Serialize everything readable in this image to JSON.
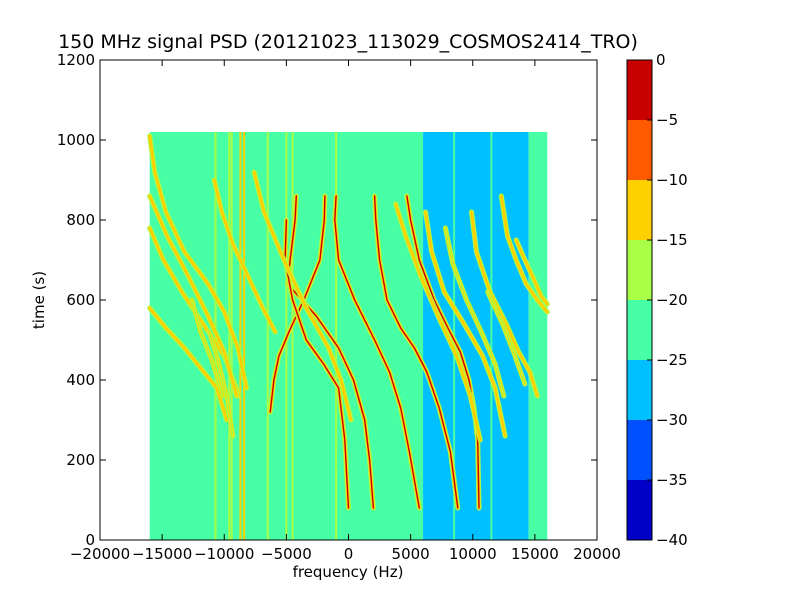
{
  "chart_data": {
    "type": "heatmap",
    "title": "150 MHz signal PSD (20121023_113029_COSMOS2414_TRO)",
    "xlabel": "frequency (Hz)",
    "ylabel": "time (s)",
    "xlim": [
      -20000,
      20000
    ],
    "ylim": [
      0,
      1200
    ],
    "xticks": [
      -20000,
      -15000,
      -10000,
      -5000,
      0,
      5000,
      10000,
      15000,
      20000
    ],
    "yticks": [
      0,
      200,
      400,
      600,
      800,
      1000,
      1200
    ],
    "data_extent": {
      "x": [
        -16000,
        16000
      ],
      "y": [
        0,
        1020
      ]
    },
    "colorbar": {
      "range": [
        -40,
        0
      ],
      "ticks": [
        0,
        -5,
        -10,
        -15,
        -20,
        -25,
        -30,
        -35,
        -40
      ],
      "levels": [
        {
          "from": -40,
          "to": -35,
          "color": "#0000c8"
        },
        {
          "from": -35,
          "to": -30,
          "color": "#0050ff"
        },
        {
          "from": -30,
          "to": -25,
          "color": "#00c0ff"
        },
        {
          "from": -25,
          "to": -20,
          "color": "#47ffa5"
        },
        {
          "from": -20,
          "to": -15,
          "color": "#a8ff45"
        },
        {
          "from": -15,
          "to": -10,
          "color": "#ffd000"
        },
        {
          "from": -10,
          "to": -5,
          "color": "#ff5a00"
        },
        {
          "from": -5,
          "to": 0,
          "color": "#c80000"
        }
      ]
    },
    "background_regions": [
      {
        "x": [
          -16000,
          -6500
        ],
        "level": -25,
        "color": "#47ffa5"
      },
      {
        "x": [
          -6500,
          6000
        ],
        "level": -25,
        "color": "#47ffa5"
      },
      {
        "x": [
          6000,
          14500
        ],
        "level": -30,
        "color": "#00c0ff"
      },
      {
        "x": [
          14500,
          16000
        ],
        "level": -25,
        "color": "#47ffa5"
      }
    ],
    "vertical_lines": [
      {
        "x": -10700,
        "level": -20
      },
      {
        "x": -9600,
        "level": -20
      },
      {
        "x": -9400,
        "level": -20
      },
      {
        "x": -8700,
        "level": -15
      },
      {
        "x": -8400,
        "level": -15
      },
      {
        "x": -6500,
        "level": -20
      },
      {
        "x": -5000,
        "level": -20
      },
      {
        "x": -4500,
        "level": -20
      },
      {
        "x": -1000,
        "level": -20
      },
      {
        "x": 3200,
        "level": -25
      },
      {
        "x": 8500,
        "level": -25
      },
      {
        "x": 11500,
        "level": -25
      }
    ],
    "series": [
      {
        "peak_level": -5,
        "points": [
          [
            -1900,
            860
          ],
          [
            -1950,
            800
          ],
          [
            -2300,
            700
          ],
          [
            -3600,
            600
          ],
          [
            -4800,
            520
          ],
          [
            -5600,
            460
          ],
          [
            -6000,
            400
          ],
          [
            -6300,
            320
          ]
        ]
      },
      {
        "peak_level": -5,
        "points": [
          [
            -4200,
            860
          ],
          [
            -4300,
            800
          ],
          [
            -4700,
            700
          ],
          [
            -4900,
            640
          ],
          [
            -2600,
            560
          ],
          [
            -800,
            480
          ],
          [
            400,
            400
          ],
          [
            1300,
            300
          ],
          [
            1700,
            200
          ],
          [
            2000,
            80
          ]
        ]
      },
      {
        "peak_level": -5,
        "points": [
          [
            -1000,
            860
          ],
          [
            -1100,
            800
          ],
          [
            -800,
            700
          ],
          [
            500,
            600
          ],
          [
            2100,
            500
          ],
          [
            3300,
            420
          ],
          [
            4200,
            330
          ],
          [
            4900,
            220
          ],
          [
            5700,
            80
          ]
        ]
      },
      {
        "peak_level": -5,
        "points": [
          [
            -5000,
            800
          ],
          [
            -5100,
            700
          ],
          [
            -4500,
            600
          ],
          [
            -3400,
            500
          ],
          [
            -2000,
            440
          ],
          [
            -800,
            380
          ],
          [
            -300,
            250
          ],
          [
            0,
            80
          ]
        ]
      },
      {
        "peak_level": -5,
        "points": [
          [
            2100,
            860
          ],
          [
            2200,
            800
          ],
          [
            2500,
            700
          ],
          [
            3100,
            600
          ],
          [
            4200,
            530
          ],
          [
            5300,
            480
          ],
          [
            6300,
            420
          ],
          [
            7300,
            330
          ],
          [
            8200,
            220
          ],
          [
            8800,
            80
          ]
        ]
      },
      {
        "peak_level": -5,
        "points": [
          [
            4700,
            860
          ],
          [
            5000,
            800
          ],
          [
            5700,
            700
          ],
          [
            6900,
            600
          ],
          [
            8000,
            530
          ],
          [
            9000,
            470
          ],
          [
            9700,
            400
          ],
          [
            10100,
            330
          ],
          [
            10400,
            250
          ],
          [
            10500,
            80
          ]
        ]
      },
      {
        "peak_level": -15,
        "points": [
          [
            -16000,
            1010
          ],
          [
            -15600,
            920
          ],
          [
            -14700,
            820
          ],
          [
            -13200,
            720
          ],
          [
            -11300,
            640
          ],
          [
            -10000,
            570
          ],
          [
            -8900,
            480
          ],
          [
            -8200,
            380
          ]
        ]
      },
      {
        "peak_level": -15,
        "points": [
          [
            -16000,
            780
          ],
          [
            -14900,
            700
          ],
          [
            -13400,
            620
          ],
          [
            -11700,
            540
          ],
          [
            -10000,
            460
          ],
          [
            -8800,
            360
          ]
        ]
      },
      {
        "peak_level": -15,
        "points": [
          [
            -16000,
            580
          ],
          [
            -14700,
            530
          ],
          [
            -13200,
            480
          ],
          [
            -11900,
            430
          ],
          [
            -10600,
            380
          ],
          [
            -9800,
            300
          ]
        ]
      },
      {
        "peak_level": -15,
        "points": [
          [
            -16000,
            860
          ],
          [
            -14600,
            760
          ],
          [
            -12900,
            660
          ],
          [
            -11300,
            560
          ],
          [
            -10000,
            470
          ],
          [
            -9000,
            360
          ]
        ]
      },
      {
        "peak_level": -15,
        "points": [
          [
            -10800,
            900
          ],
          [
            -10200,
            820
          ],
          [
            -9300,
            740
          ],
          [
            -8100,
            660
          ],
          [
            -6900,
            580
          ],
          [
            -5900,
            520
          ]
        ]
      },
      {
        "peak_level": -15,
        "points": [
          [
            -7600,
            920
          ],
          [
            -6800,
            820
          ],
          [
            -5200,
            700
          ],
          [
            -3400,
            580
          ],
          [
            -1600,
            480
          ],
          [
            -600,
            400
          ],
          [
            200,
            300
          ]
        ]
      },
      {
        "peak_level": -15,
        "points": [
          [
            3800,
            840
          ],
          [
            4600,
            760
          ],
          [
            5800,
            660
          ],
          [
            7200,
            560
          ],
          [
            8700,
            460
          ],
          [
            9800,
            360
          ],
          [
            10600,
            250
          ]
        ]
      },
      {
        "peak_level": -15,
        "points": [
          [
            6200,
            820
          ],
          [
            6700,
            720
          ],
          [
            7700,
            620
          ],
          [
            9300,
            540
          ],
          [
            10800,
            460
          ],
          [
            11800,
            380
          ],
          [
            12600,
            260
          ]
        ]
      },
      {
        "peak_level": -15,
        "points": [
          [
            9900,
            820
          ],
          [
            10300,
            720
          ],
          [
            11400,
            620
          ],
          [
            12700,
            540
          ],
          [
            13700,
            470
          ],
          [
            14600,
            420
          ],
          [
            15200,
            360
          ]
        ]
      },
      {
        "peak_level": -15,
        "points": [
          [
            12300,
            860
          ],
          [
            12800,
            760
          ],
          [
            13500,
            700
          ],
          [
            14300,
            640
          ],
          [
            15200,
            600
          ],
          [
            16000,
            570
          ]
        ]
      },
      {
        "peak_level": -15,
        "points": [
          [
            13500,
            750
          ],
          [
            14200,
            700
          ],
          [
            14800,
            660
          ],
          [
            15500,
            610
          ],
          [
            16000,
            590
          ]
        ]
      },
      {
        "peak_level": -20,
        "points": [
          [
            -11200,
            520
          ],
          [
            -10500,
            450
          ],
          [
            -9800,
            360
          ],
          [
            -9300,
            260
          ]
        ]
      },
      {
        "peak_level": -20,
        "points": [
          [
            -12600,
            600
          ],
          [
            -11900,
            520
          ],
          [
            -11000,
            450
          ],
          [
            -10100,
            360
          ]
        ]
      },
      {
        "peak_level": -20,
        "points": [
          [
            11200,
            620
          ],
          [
            12400,
            540
          ],
          [
            13400,
            460
          ],
          [
            14200,
            390
          ]
        ]
      },
      {
        "peak_level": -20,
        "points": [
          [
            7800,
            780
          ],
          [
            8400,
            690
          ],
          [
            9500,
            600
          ],
          [
            10700,
            520
          ],
          [
            11800,
            440
          ],
          [
            12500,
            360
          ]
        ]
      }
    ]
  }
}
